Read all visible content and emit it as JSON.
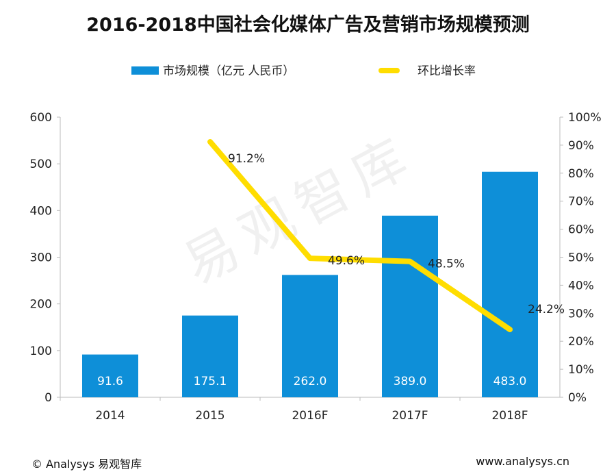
{
  "title": "2016-2018中国社会化媒体广告及营销市场规模预测",
  "watermark": "易观智库",
  "footer": {
    "left": "© Analysys 易观智库",
    "right": "www.analysys.cn"
  },
  "chart_data": {
    "type": "bar+line",
    "categories": [
      "2014",
      "2015",
      "2016F",
      "2017F",
      "2018F"
    ],
    "series": [
      {
        "name": "市场规模（亿元 人民币）",
        "type": "bar",
        "axis": "left",
        "color": "#0e8fd8",
        "values": [
          91.6,
          175.1,
          262.0,
          389.0,
          483.0
        ],
        "labels": [
          "91.6",
          "175.1",
          "262.0",
          "389.0",
          "483.0"
        ]
      },
      {
        "name": "环比增长率",
        "type": "line",
        "axis": "right",
        "color": "#ffdd00",
        "values": [
          null,
          91.2,
          49.6,
          48.5,
          24.2
        ],
        "labels": [
          "",
          "91.2%",
          "49.6%",
          "48.5%",
          "24.2%"
        ]
      }
    ],
    "left_axis": {
      "range": [
        0,
        600
      ],
      "ticks": [
        "0",
        "100",
        "200",
        "300",
        "400",
        "500",
        "600"
      ]
    },
    "right_axis": {
      "range": [
        0,
        100
      ],
      "ticks": [
        "0%",
        "10%",
        "20%",
        "30%",
        "40%",
        "50%",
        "60%",
        "70%",
        "80%",
        "90%",
        "100%"
      ]
    },
    "legend": "top",
    "grid": false
  }
}
